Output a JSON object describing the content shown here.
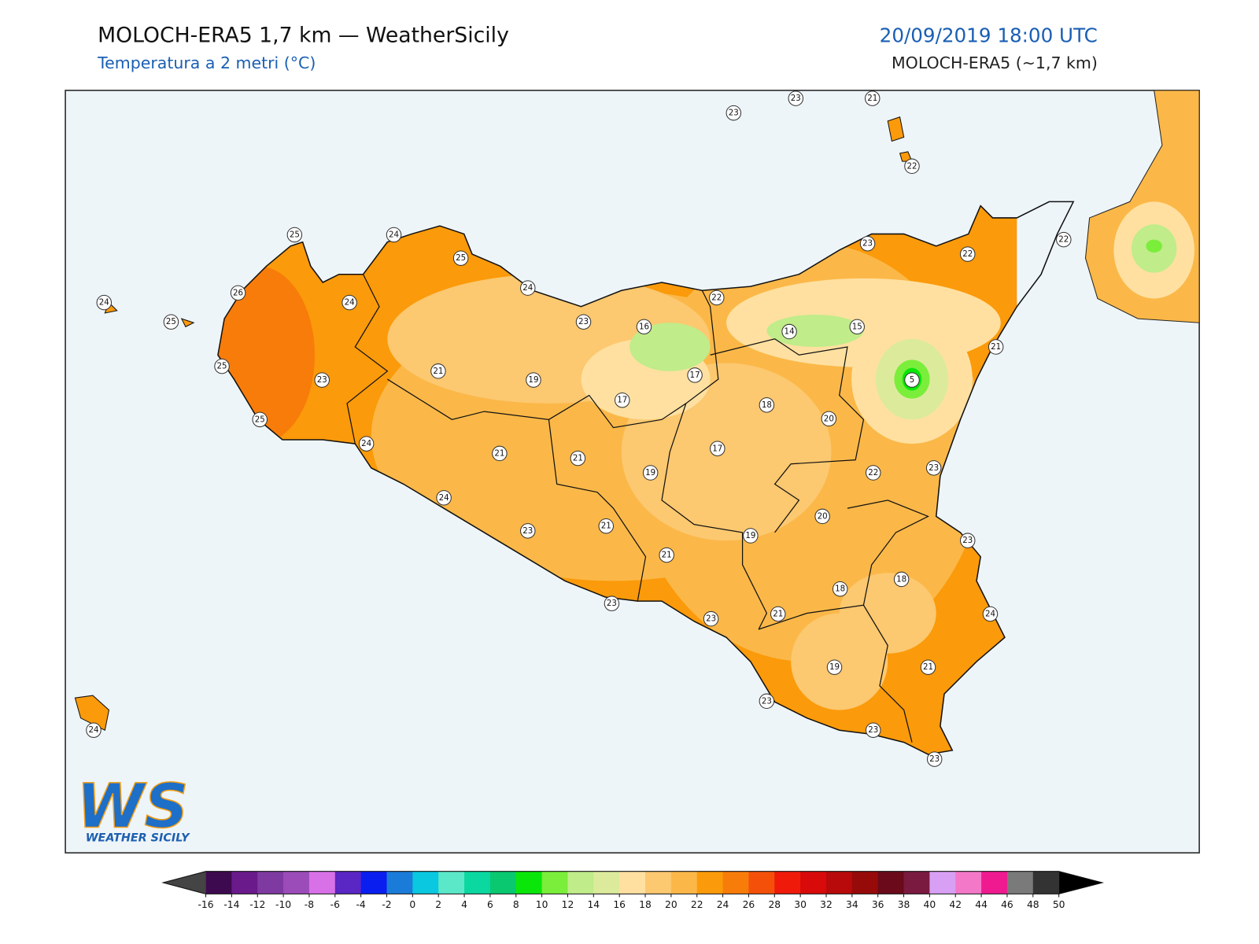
{
  "header": {
    "title": "MOLOCH-ERA5 1,7 km — WeatherSicily",
    "subtitle": "Temperatura a 2 metri (°C)",
    "valid_time": "20/09/2019 18:00 UTC",
    "model": "MOLOCH-ERA5 (~1,7 km)"
  },
  "map": {
    "stations": [
      23,
      23,
      21,
      22,
      25,
      24,
      25,
      24,
      26,
      24,
      24,
      25,
      23,
      16,
      22,
      23,
      22,
      22,
      14,
      15,
      21,
      5,
      21,
      19,
      17,
      17,
      23,
      25,
      25,
      18,
      20,
      24,
      21,
      21,
      19,
      17,
      22,
      23,
      24,
      20,
      23,
      21,
      19,
      23,
      21,
      18,
      18,
      23,
      23,
      21,
      24,
      19,
      21,
      23,
      23,
      23,
      24
    ]
  },
  "colorbar": {
    "ticks": [
      -16,
      -14,
      -12,
      -10,
      -8,
      -6,
      -4,
      -2,
      0,
      2,
      4,
      6,
      8,
      10,
      12,
      14,
      16,
      18,
      20,
      22,
      24,
      26,
      28,
      30,
      32,
      34,
      36,
      38,
      40,
      42,
      44,
      46,
      48,
      50
    ],
    "colors": [
      "#3d0a4f",
      "#6a1a8a",
      "#7e3aa0",
      "#9b4cb8",
      "#d870e8",
      "#5a26c4",
      "#0a1ef0",
      "#1a7cd8",
      "#0ac8e0",
      "#5ae8c8",
      "#0ad8a0",
      "#0ac870",
      "#0ae60a",
      "#7aee3a",
      "#c0ec8a",
      "#dcea9c",
      "#ffe0a0",
      "#fcc870",
      "#fbb848",
      "#fb9a0a",
      "#f87c0a",
      "#f4500a",
      "#f01a0a",
      "#d80a0a",
      "#b80a0a",
      "#960a0a",
      "#6a0a1a",
      "#7a1a40",
      "#d8a0f4",
      "#f478c8",
      "#f01a90",
      "#7a7a7a",
      "#333333"
    ],
    "under_color": "#444444",
    "over_color": "#000000"
  },
  "logo": {
    "mark": "WS",
    "name": "WEATHER SICILY"
  }
}
